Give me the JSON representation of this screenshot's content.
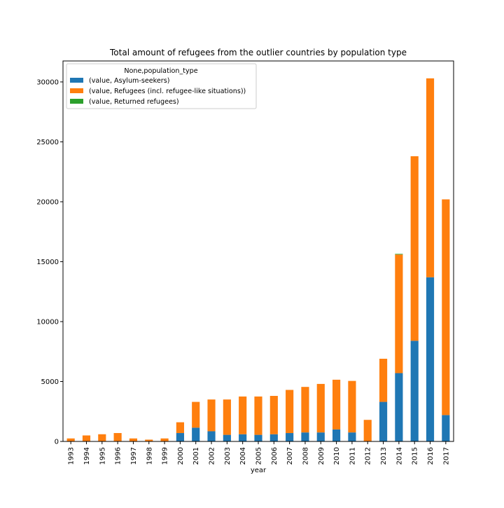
{
  "chart_data": {
    "type": "bar",
    "stacked": true,
    "title": "Total amount of refugees from the outlier countries by population type",
    "xlabel": "year",
    "ylabel": "",
    "categories": [
      "1993",
      "1994",
      "1995",
      "1996",
      "1997",
      "1998",
      "1999",
      "2000",
      "2001",
      "2002",
      "2003",
      "2004",
      "2005",
      "2006",
      "2007",
      "2008",
      "2009",
      "2010",
      "2011",
      "2012",
      "2013",
      "2014",
      "2015",
      "2016",
      "2017"
    ],
    "series": [
      {
        "name": "(value, Asylum-seekers)",
        "color": "#1f77b4",
        "values": [
          0,
          0,
          0,
          0,
          0,
          0,
          0,
          700,
          1150,
          850,
          550,
          600,
          550,
          600,
          700,
          750,
          750,
          1000,
          750,
          0,
          3300,
          5700,
          8400,
          13700,
          2200
        ]
      },
      {
        "name": "(value, Refugees (incl. refugee-like situations))",
        "color": "#ff7f0e",
        "values": [
          250,
          500,
          600,
          700,
          250,
          150,
          250,
          900,
          2150,
          2650,
          2950,
          3150,
          3200,
          3200,
          3600,
          3800,
          4050,
          4150,
          4300,
          1800,
          3600,
          9900,
          15400,
          16600,
          18000
        ]
      },
      {
        "name": "(value, Returned refugees)",
        "color": "#2ca02c",
        "values": [
          0,
          0,
          0,
          0,
          0,
          0,
          0,
          0,
          0,
          0,
          0,
          0,
          0,
          0,
          0,
          0,
          0,
          0,
          0,
          0,
          0,
          50,
          0,
          0,
          0
        ]
      }
    ],
    "ylim": [
      0,
      31750
    ],
    "yticks": [
      0,
      5000,
      10000,
      15000,
      20000,
      25000,
      30000
    ],
    "legend": {
      "title": "None,population_type",
      "position": "top-left"
    },
    "grid": false
  }
}
